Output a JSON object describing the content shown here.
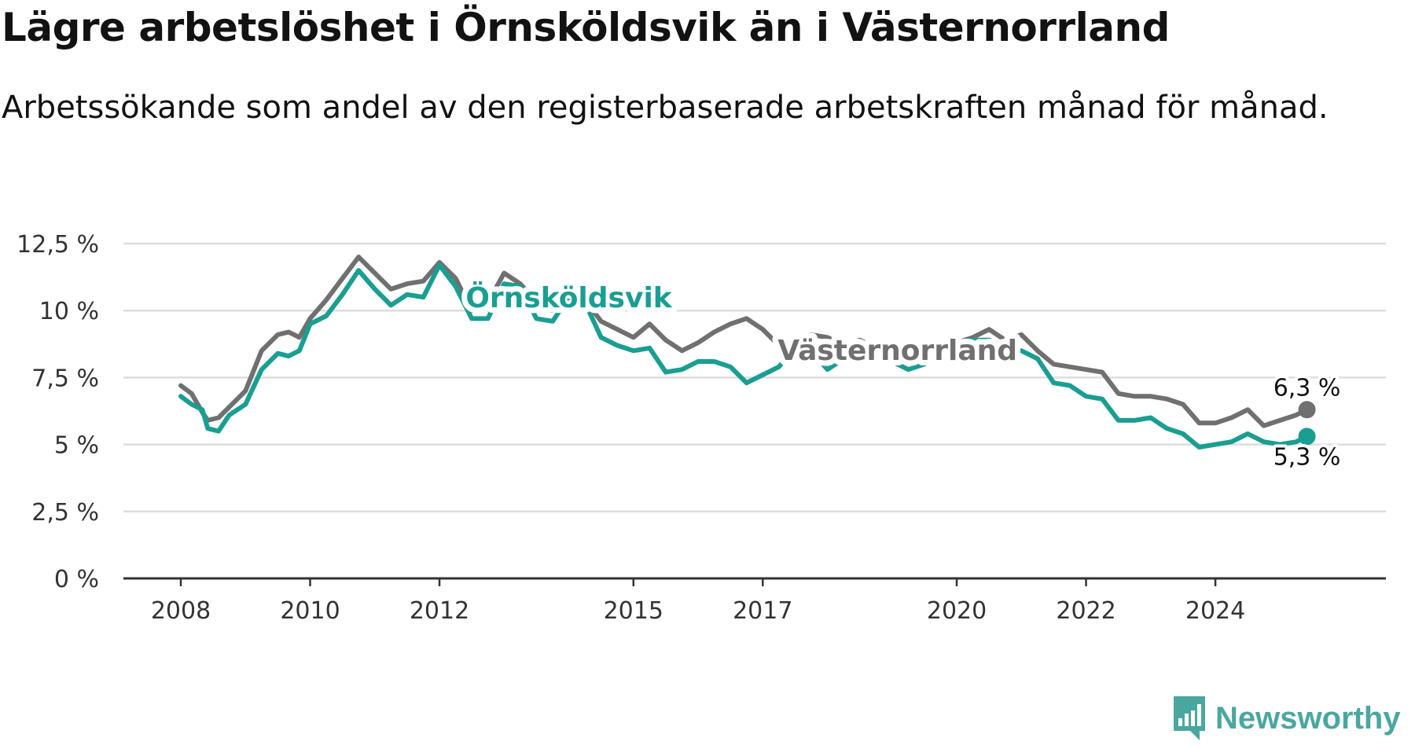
{
  "header": {
    "title": "Lägre arbetslöshet i Örnsköldsvik än i Västernorrland",
    "subtitle": "Arbetssökande som andel av den registerbaserade arbetskraften månad för månad."
  },
  "branding": {
    "logo_text": "Newsworthy",
    "logo_icon": "bar-chart-speech-bubble-icon"
  },
  "colors": {
    "ornskoldsvik": "#1a9e92",
    "vasternorrland": "#707070",
    "grid": "#dddddd",
    "axis": "#333333"
  },
  "chart_data": {
    "type": "line",
    "title": "Lägre arbetslöshet i Örnsköldsvik än i Västernorrland",
    "subtitle": "Arbetssökande som andel av den registerbaserade arbetskraften månad för månad.",
    "xlabel": "",
    "ylabel": "",
    "ylim": [
      0,
      12.5
    ],
    "y_ticks": [
      0,
      2.5,
      5,
      7.5,
      10,
      12.5
    ],
    "y_tick_labels": [
      "0 %",
      "2,5 %",
      "5 %",
      "7,5 %",
      "10 %",
      "12,5 %"
    ],
    "x_range": [
      "2008-01",
      "2025-12"
    ],
    "x_ticks": [
      2008,
      2010,
      2012,
      2015,
      2017,
      2020,
      2022,
      2024
    ],
    "x_tick_labels": [
      "2008",
      "2010",
      "2012",
      "2015",
      "2017",
      "2020",
      "2022",
      "2024"
    ],
    "grid": "horizontal",
    "legend": "direct labels on lines",
    "series": [
      {
        "name": "Västernorrland",
        "end_label": "6,3 %",
        "points": [
          [
            "2008-01",
            7.2
          ],
          [
            "2008-03",
            6.9
          ],
          [
            "2008-05",
            6.2
          ],
          [
            "2008-06",
            5.9
          ],
          [
            "2008-08",
            6.0
          ],
          [
            "2008-10",
            6.4
          ],
          [
            "2009-01",
            7.0
          ],
          [
            "2009-04",
            8.5
          ],
          [
            "2009-07",
            9.1
          ],
          [
            "2009-09",
            9.2
          ],
          [
            "2009-11",
            9.0
          ],
          [
            "2010-01",
            9.7
          ],
          [
            "2010-04",
            10.4
          ],
          [
            "2010-07",
            11.2
          ],
          [
            "2010-10",
            12.0
          ],
          [
            "2011-01",
            11.4
          ],
          [
            "2011-04",
            10.8
          ],
          [
            "2011-07",
            11.0
          ],
          [
            "2011-10",
            11.1
          ],
          [
            "2012-01",
            11.8
          ],
          [
            "2012-04",
            11.2
          ],
          [
            "2012-07",
            10.0
          ],
          [
            "2012-10",
            10.3
          ],
          [
            "2013-01",
            11.4
          ],
          [
            "2013-04",
            11.0
          ],
          [
            "2013-07",
            10.3
          ],
          [
            "2013-10",
            10.0
          ],
          [
            "2014-01",
            10.6
          ],
          [
            "2014-04",
            10.4
          ],
          [
            "2014-07",
            9.6
          ],
          [
            "2014-10",
            9.3
          ],
          [
            "2015-01",
            9.0
          ],
          [
            "2015-04",
            9.5
          ],
          [
            "2015-07",
            8.9
          ],
          [
            "2015-10",
            8.5
          ],
          [
            "2016-01",
            8.8
          ],
          [
            "2016-04",
            9.2
          ],
          [
            "2016-07",
            9.5
          ],
          [
            "2016-10",
            9.7
          ],
          [
            "2017-01",
            9.3
          ],
          [
            "2017-04",
            8.7
          ],
          [
            "2017-07",
            8.9
          ],
          [
            "2017-10",
            9.1
          ],
          [
            "2018-01",
            9.0
          ],
          [
            "2018-04",
            8.7
          ],
          [
            "2018-07",
            8.9
          ],
          [
            "2018-10",
            8.6
          ],
          [
            "2019-01",
            8.5
          ],
          [
            "2019-04",
            8.6
          ],
          [
            "2019-07",
            8.7
          ],
          [
            "2019-10",
            8.8
          ],
          [
            "2020-01",
            8.8
          ],
          [
            "2020-04",
            9.0
          ],
          [
            "2020-07",
            9.3
          ],
          [
            "2020-10",
            8.9
          ],
          [
            "2021-01",
            9.1
          ],
          [
            "2021-04",
            8.5
          ],
          [
            "2021-07",
            8.0
          ],
          [
            "2021-10",
            7.9
          ],
          [
            "2022-01",
            7.8
          ],
          [
            "2022-04",
            7.7
          ],
          [
            "2022-07",
            6.9
          ],
          [
            "2022-10",
            6.8
          ],
          [
            "2023-01",
            6.8
          ],
          [
            "2023-04",
            6.7
          ],
          [
            "2023-07",
            6.5
          ],
          [
            "2023-10",
            5.8
          ],
          [
            "2024-01",
            5.8
          ],
          [
            "2024-04",
            6.0
          ],
          [
            "2024-07",
            6.3
          ],
          [
            "2024-10",
            5.7
          ],
          [
            "2025-01",
            5.9
          ],
          [
            "2025-04",
            6.1
          ],
          [
            "2025-06",
            6.3
          ]
        ]
      },
      {
        "name": "Örnsköldsvik",
        "end_label": "5,3 %",
        "points": [
          [
            "2008-01",
            6.8
          ],
          [
            "2008-03",
            6.5
          ],
          [
            "2008-05",
            6.3
          ],
          [
            "2008-06",
            5.6
          ],
          [
            "2008-08",
            5.5
          ],
          [
            "2008-10",
            6.1
          ],
          [
            "2009-01",
            6.5
          ],
          [
            "2009-04",
            7.8
          ],
          [
            "2009-07",
            8.4
          ],
          [
            "2009-09",
            8.3
          ],
          [
            "2009-11",
            8.5
          ],
          [
            "2010-01",
            9.5
          ],
          [
            "2010-04",
            9.8
          ],
          [
            "2010-07",
            10.6
          ],
          [
            "2010-10",
            11.5
          ],
          [
            "2011-01",
            10.8
          ],
          [
            "2011-04",
            10.2
          ],
          [
            "2011-07",
            10.6
          ],
          [
            "2011-10",
            10.5
          ],
          [
            "2012-01",
            11.7
          ],
          [
            "2012-04",
            10.9
          ],
          [
            "2012-07",
            9.7
          ],
          [
            "2012-10",
            9.7
          ],
          [
            "2013-01",
            11.0
          ],
          [
            "2013-04",
            10.9
          ],
          [
            "2013-07",
            9.7
          ],
          [
            "2013-10",
            9.6
          ],
          [
            "2014-01",
            10.5
          ],
          [
            "2014-04",
            10.3
          ],
          [
            "2014-07",
            9.0
          ],
          [
            "2014-10",
            8.7
          ],
          [
            "2015-01",
            8.5
          ],
          [
            "2015-04",
            8.6
          ],
          [
            "2015-07",
            7.7
          ],
          [
            "2015-10",
            7.8
          ],
          [
            "2016-01",
            8.1
          ],
          [
            "2016-04",
            8.1
          ],
          [
            "2016-07",
            7.9
          ],
          [
            "2016-10",
            7.3
          ],
          [
            "2017-01",
            7.6
          ],
          [
            "2017-04",
            7.9
          ],
          [
            "2017-07",
            8.6
          ],
          [
            "2017-10",
            8.5
          ],
          [
            "2018-01",
            7.8
          ],
          [
            "2018-04",
            8.2
          ],
          [
            "2018-07",
            8.8
          ],
          [
            "2018-10",
            8.7
          ],
          [
            "2019-01",
            8.1
          ],
          [
            "2019-04",
            7.8
          ],
          [
            "2019-07",
            8.0
          ],
          [
            "2019-10",
            8.4
          ],
          [
            "2020-01",
            8.8
          ],
          [
            "2020-04",
            8.9
          ],
          [
            "2020-07",
            8.9
          ],
          [
            "2020-10",
            8.6
          ],
          [
            "2021-01",
            8.5
          ],
          [
            "2021-04",
            8.2
          ],
          [
            "2021-07",
            7.3
          ],
          [
            "2021-10",
            7.2
          ],
          [
            "2022-01",
            6.8
          ],
          [
            "2022-04",
            6.7
          ],
          [
            "2022-07",
            5.9
          ],
          [
            "2022-10",
            5.9
          ],
          [
            "2023-01",
            6.0
          ],
          [
            "2023-04",
            5.6
          ],
          [
            "2023-07",
            5.4
          ],
          [
            "2023-10",
            4.9
          ],
          [
            "2024-01",
            5.0
          ],
          [
            "2024-04",
            5.1
          ],
          [
            "2024-07",
            5.4
          ],
          [
            "2024-10",
            5.1
          ],
          [
            "2025-01",
            5.0
          ],
          [
            "2025-04",
            5.1
          ],
          [
            "2025-06",
            5.3
          ]
        ]
      }
    ],
    "annotations": [
      {
        "text": "Örnsköldsvik",
        "series": "Örnsköldsvik",
        "at": "2014-01"
      },
      {
        "text": "Västernorrland",
        "series": "Västernorrland",
        "at": "2019-02"
      }
    ]
  }
}
